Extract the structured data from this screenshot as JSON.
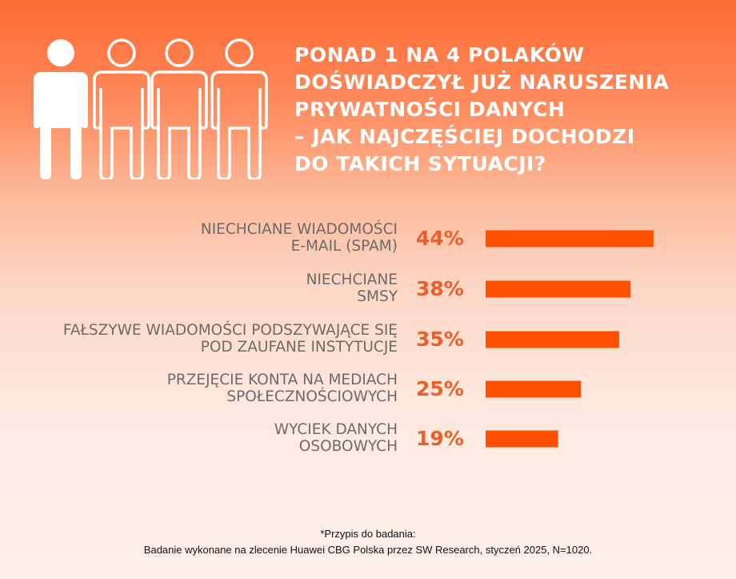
{
  "title_lines": [
    "PONAD 1 NA 4 POLAKÓW",
    "DOŚWIADCZYŁ JUŻ NARUSZENIA",
    "PRYWATNOŚCI DANYCH",
    "– JAK NAJCZĘŚCIEJ DOCHODZI",
    "DO TAKICH SYTUACJI?"
  ],
  "icons": {
    "people": "person-icon",
    "filled_count": 1,
    "total_count": 4
  },
  "colors": {
    "bar": "#ff5000",
    "percent_text": "#e8602b",
    "label_text": "#6d6a6a",
    "title": "#ffffff"
  },
  "chart_data": {
    "type": "bar",
    "orientation": "horizontal",
    "categories": [
      [
        "NIECHCIANE WIADOMOŚCI",
        "E-MAIL (SPAM)"
      ],
      [
        "NIECHCIANE",
        "SMSY"
      ],
      [
        "FAŁSZYWE WIADOMOŚCI PODSZYWAJĄCE SIĘ",
        "POD ZAUFANE INSTYTUCJE"
      ],
      [
        "PRZEJĘCIE KONTA NA MEDIACH",
        "SPOŁECZNOŚCIOWYCH"
      ],
      [
        "WYCIEK DANYCH",
        "OSOBOWYCH"
      ]
    ],
    "values": [
      44,
      38,
      35,
      25,
      19
    ],
    "data_labels": [
      "44%",
      "38%",
      "35%",
      "25%",
      "19%"
    ],
    "unit": "%",
    "grid": false
  },
  "footnote": [
    "*Przypis do badania:",
    "Badanie wykonane na zlecenie Huawei CBG Polska przez SW Research, styczeń 2025, N=1020."
  ]
}
